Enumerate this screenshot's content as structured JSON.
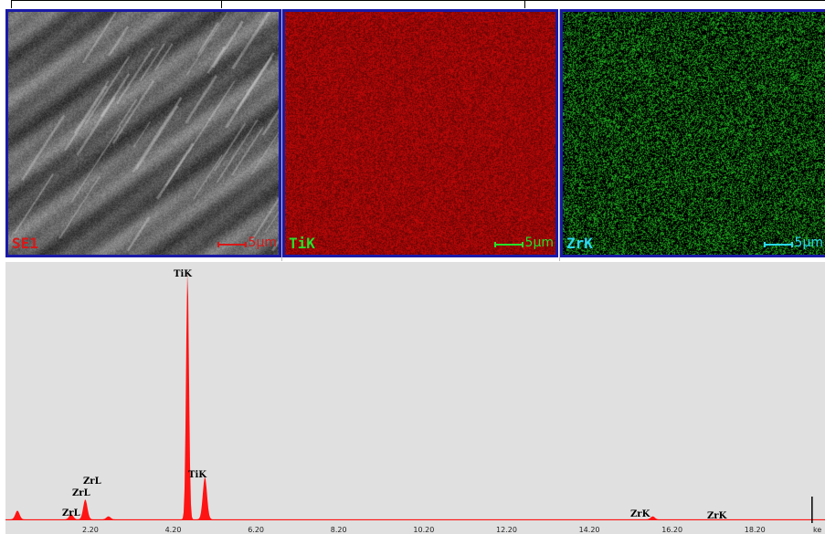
{
  "maps": [
    {
      "label": "SE1",
      "scale_text": "5µm",
      "label_color": "#d81818",
      "scale_color": "#d81818"
    },
    {
      "label": "TiK",
      "scale_text": "5µm",
      "label_color": "#26e02a",
      "scale_color": "#26e02a"
    },
    {
      "label": "ZrK",
      "scale_text": "5µm",
      "label_color": "#2ad8f0",
      "scale_color": "#2ad8f0"
    }
  ],
  "colors": {
    "panel_border": "#1a1aa8",
    "sem_gray": "#6e6e6e",
    "ti_map": "#b00808",
    "zr_map": "#1fa21f",
    "spectrum_bg": "#e0e0e0",
    "spectrum_fill": "#ff1414"
  },
  "spectrum": {
    "x_ticks": [
      "2.20",
      "4.20",
      "6.20",
      "8.20",
      "10.20",
      "12.20",
      "14.20",
      "16.20",
      "18.20"
    ],
    "x_unit": "ke",
    "peak_labels": [
      "TiK",
      "ZrL",
      "ZrL",
      "TiK",
      "ZrL",
      "ZrK",
      "ZrK"
    ],
    "peaks": [
      {
        "energy": 0.4,
        "height": 0.035
      },
      {
        "energy": 1.7,
        "height": 0.02
      },
      {
        "energy": 2.04,
        "height": 0.08
      },
      {
        "energy": 2.6,
        "height": 0.012
      },
      {
        "energy": 4.51,
        "height": 1.0
      },
      {
        "energy": 4.93,
        "height": 0.17
      },
      {
        "energy": 15.75,
        "height": 0.012
      }
    ],
    "marker_energy": 19.6
  }
}
